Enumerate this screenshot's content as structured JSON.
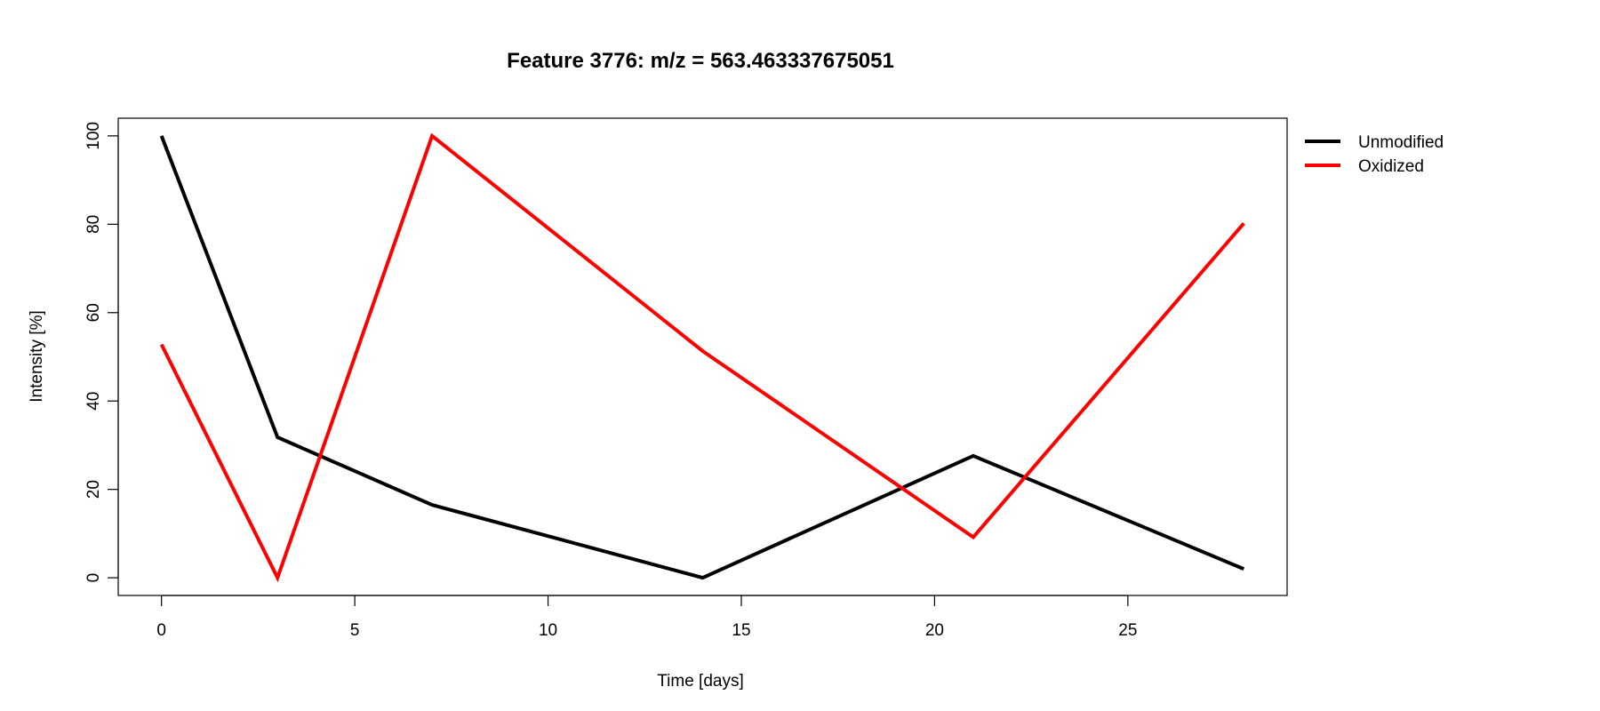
{
  "chart_data": {
    "type": "line",
    "title": "Feature 3776: m/z = 563.463337675051",
    "xlabel": "Time [days]",
    "ylabel": "Intensity [%]",
    "xlim": [
      -1.12,
      29.12
    ],
    "ylim": [
      -4,
      104
    ],
    "xticks": [
      0,
      5,
      10,
      15,
      20,
      25
    ],
    "yticks": [
      0,
      20,
      40,
      60,
      80,
      100
    ],
    "x": [
      0,
      3,
      7,
      14,
      21,
      28
    ],
    "grid": false,
    "legend_position": "right",
    "series": [
      {
        "name": "Unmodified",
        "color": "#000000",
        "values": [
          100,
          31.8,
          16.5,
          0,
          27.6,
          2
        ]
      },
      {
        "name": "Oxidized",
        "color": "#ff0000",
        "values": [
          52.8,
          0,
          100,
          51.3,
          9.2,
          80.2
        ]
      }
    ]
  }
}
